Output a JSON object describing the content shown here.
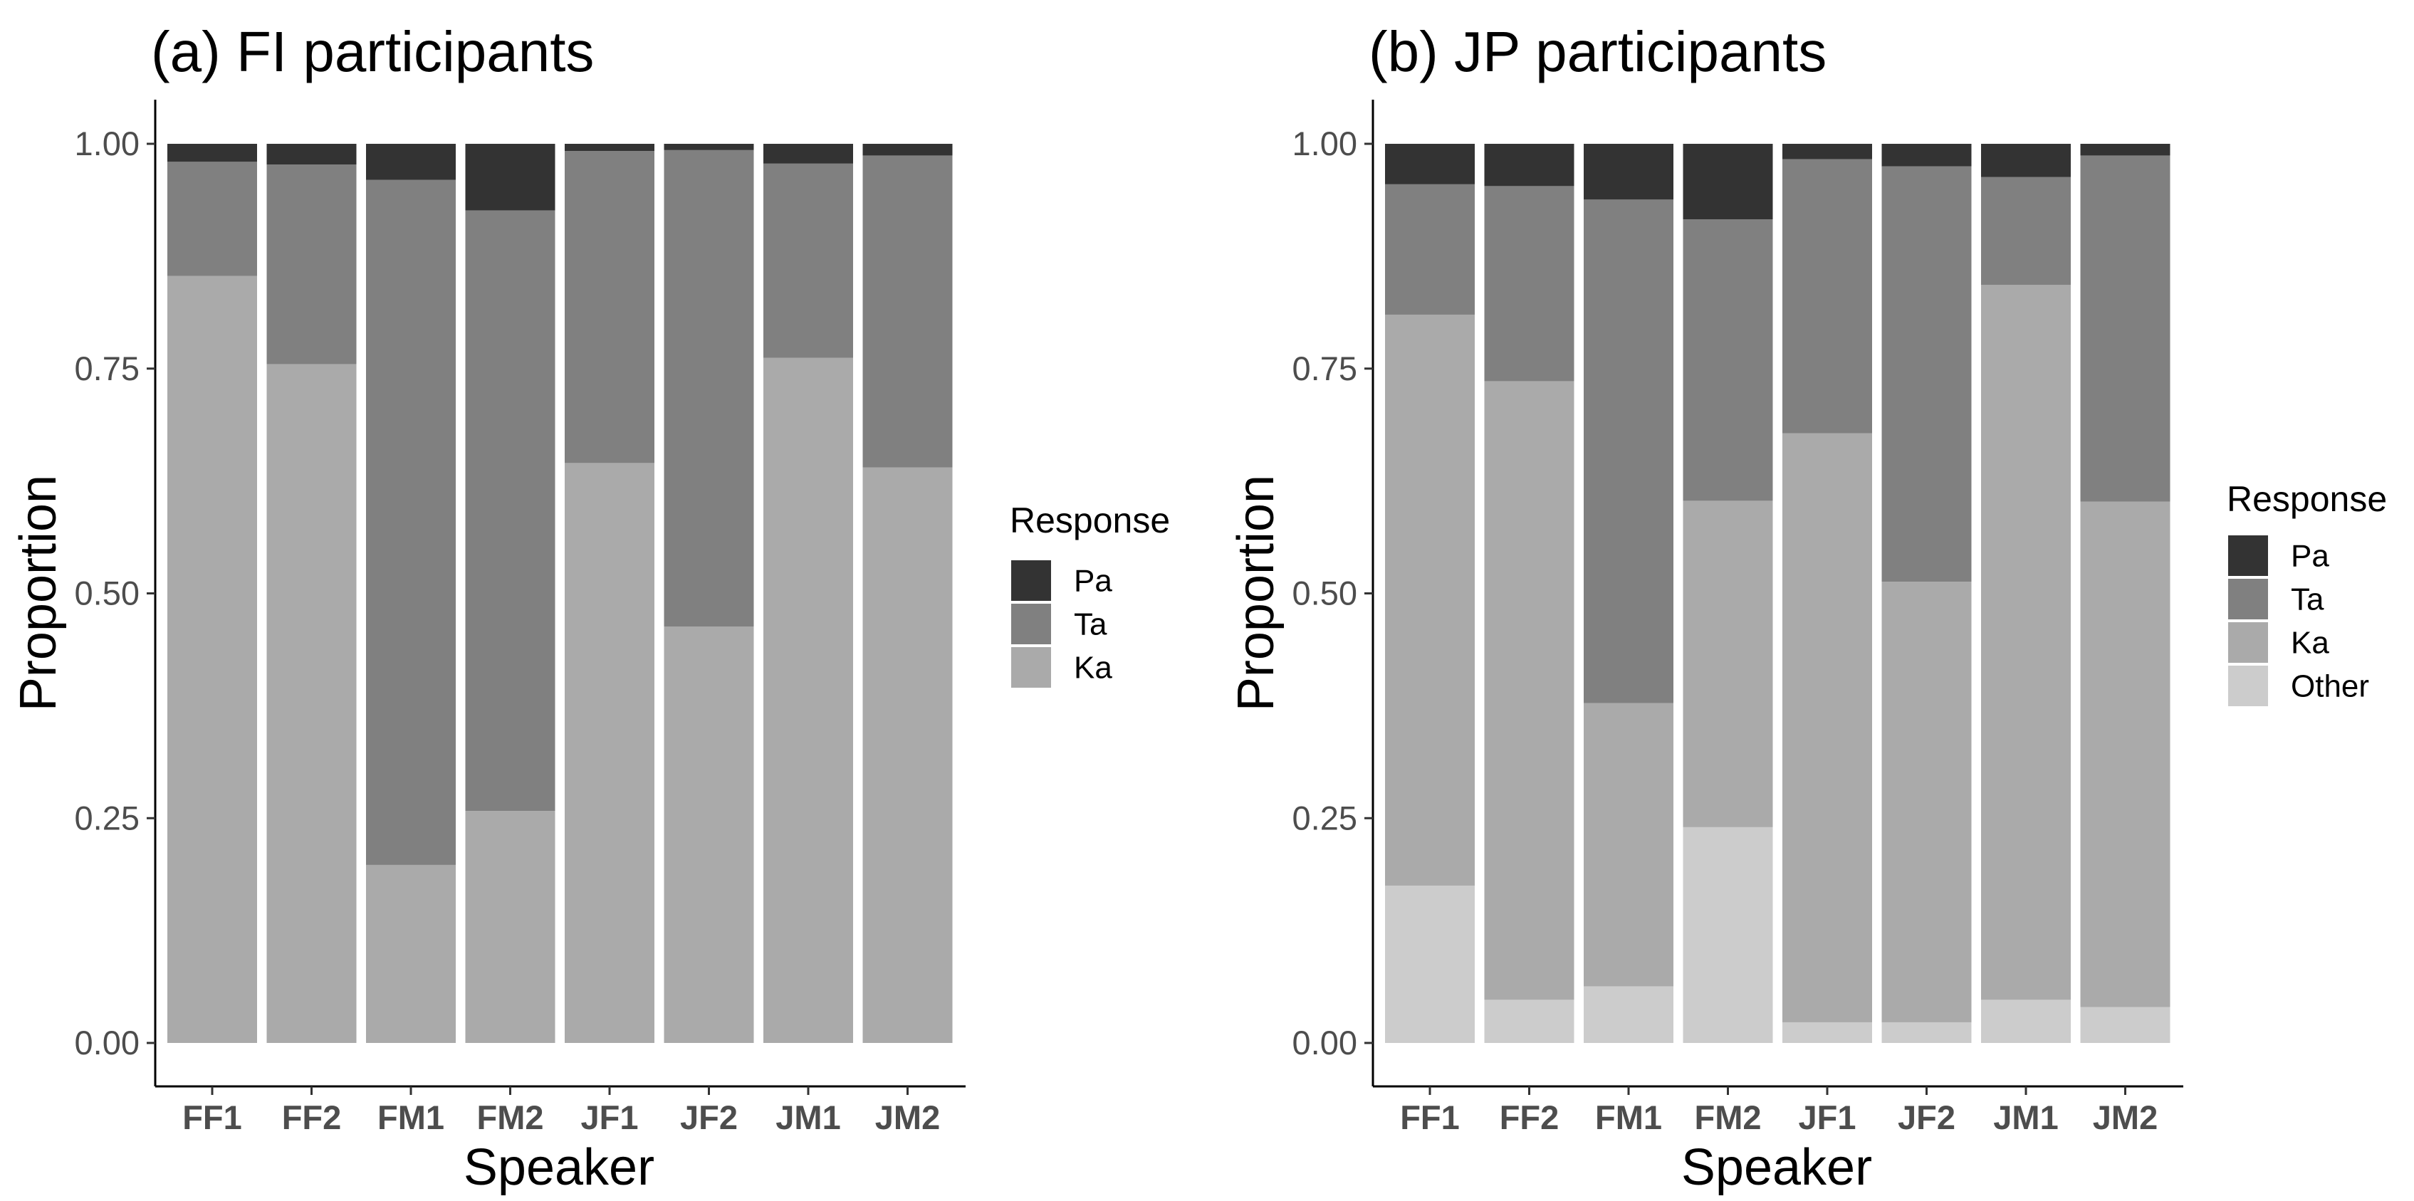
{
  "chart_data": [
    {
      "type": "bar",
      "stacked": true,
      "title": "(a) FI participants",
      "xlabel": "Speaker",
      "ylabel": "Proportion",
      "ylim": [
        0,
        1
      ],
      "yticks": [
        "0.00",
        "0.25",
        "0.50",
        "0.75",
        "1.00"
      ],
      "categories": [
        "FF1",
        "FF2",
        "FM1",
        "FM2",
        "JF1",
        "JF2",
        "JM1",
        "JM2"
      ],
      "legend_title": "Response",
      "legend_position": "right",
      "legend_order": [
        "Pa",
        "Ta",
        "Ka"
      ],
      "series": [
        {
          "name": "Ka",
          "color": "#aaaaaa",
          "values": [
            0.853,
            0.755,
            0.198,
            0.258,
            0.645,
            0.463,
            0.762,
            0.64
          ]
        },
        {
          "name": "Ta",
          "color": "#808080",
          "values": [
            0.127,
            0.222,
            0.762,
            0.668,
            0.347,
            0.53,
            0.216,
            0.347
          ]
        },
        {
          "name": "Pa",
          "color": "#333333",
          "values": [
            0.02,
            0.023,
            0.04,
            0.074,
            0.008,
            0.007,
            0.022,
            0.013
          ]
        }
      ]
    },
    {
      "type": "bar",
      "stacked": true,
      "title": "(b) JP participants",
      "xlabel": "Speaker",
      "ylabel": "Proportion",
      "ylim": [
        0,
        1
      ],
      "yticks": [
        "0.00",
        "0.25",
        "0.50",
        "0.75",
        "1.00"
      ],
      "categories": [
        "FF1",
        "FF2",
        "FM1",
        "FM2",
        "JF1",
        "JF2",
        "JM1",
        "JM2"
      ],
      "legend_title": "Response",
      "legend_position": "right",
      "legend_order": [
        "Pa",
        "Ta",
        "Ka",
        "Other"
      ],
      "series": [
        {
          "name": "Other",
          "color": "#cccccc",
          "values": [
            0.175,
            0.048,
            0.063,
            0.24,
            0.023,
            0.023,
            0.048,
            0.04
          ]
        },
        {
          "name": "Ka",
          "color": "#aaaaaa",
          "values": [
            0.635,
            0.688,
            0.315,
            0.363,
            0.655,
            0.49,
            0.795,
            0.562
          ]
        },
        {
          "name": "Ta",
          "color": "#808080",
          "values": [
            0.145,
            0.217,
            0.56,
            0.313,
            0.305,
            0.462,
            0.12,
            0.385
          ]
        },
        {
          "name": "Pa",
          "color": "#333333",
          "values": [
            0.045,
            0.047,
            0.062,
            0.084,
            0.017,
            0.025,
            0.037,
            0.013
          ]
        }
      ]
    }
  ]
}
